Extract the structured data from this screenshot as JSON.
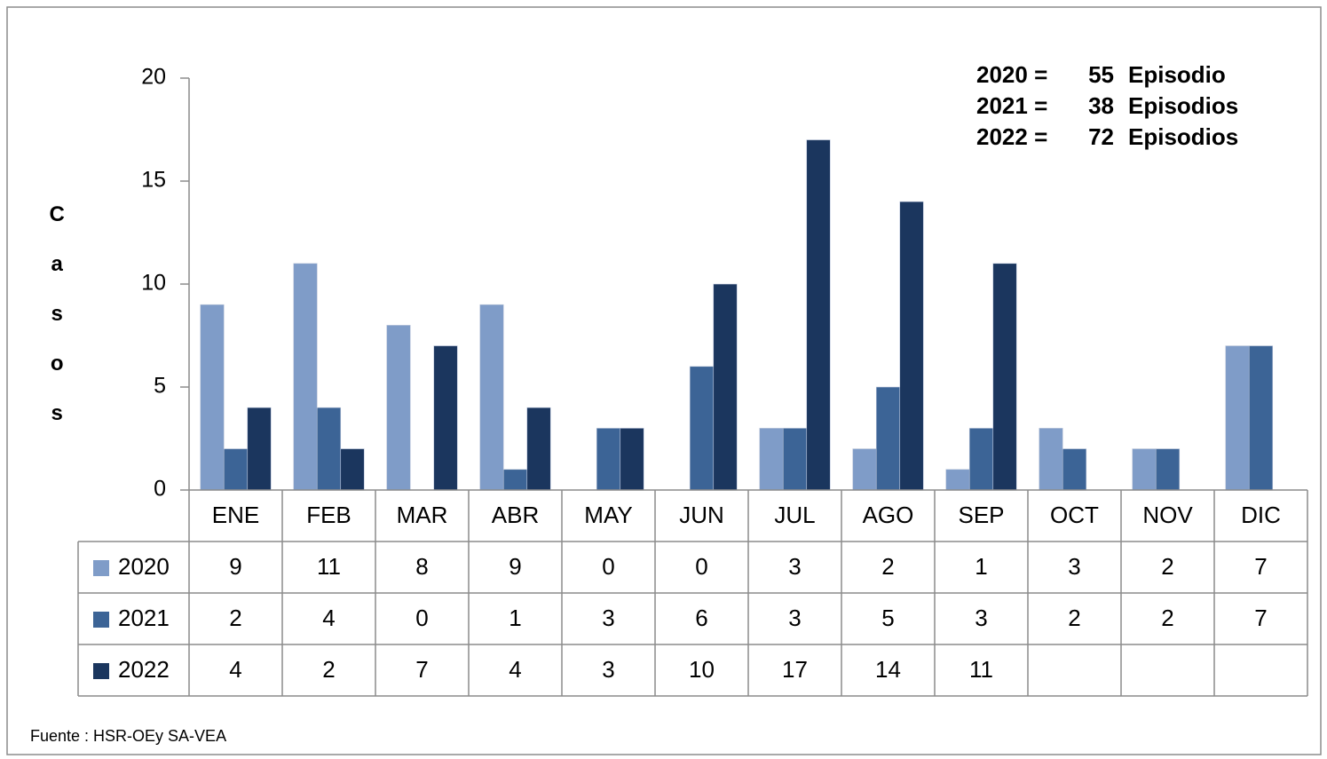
{
  "chart_data": {
    "type": "bar",
    "ylabel": "Casos",
    "categories": [
      "ENE",
      "FEB",
      "MAR",
      "ABR",
      "MAY",
      "JUN",
      "JUL",
      "AGO",
      "SEP",
      "OCT",
      "NOV",
      "DIC"
    ],
    "series": [
      {
        "name": "2020",
        "color": "#7f9cc8",
        "values": [
          9,
          11,
          8,
          9,
          0,
          0,
          3,
          2,
          1,
          3,
          2,
          7
        ]
      },
      {
        "name": "2021",
        "color": "#3c6496",
        "values": [
          2,
          4,
          0,
          1,
          3,
          6,
          3,
          5,
          3,
          2,
          2,
          7
        ]
      },
      {
        "name": "2022",
        "color": "#1b365e",
        "values": [
          4,
          2,
          7,
          4,
          3,
          10,
          17,
          14,
          11,
          null,
          null,
          null
        ]
      }
    ],
    "ylim": [
      0,
      20
    ],
    "yticks": [
      0,
      5,
      10,
      15,
      20
    ],
    "grid": false,
    "annotations": [
      {
        "label": "2020 =",
        "count": 55,
        "unit": "Episodio"
      },
      {
        "label": "2021 =",
        "count": 38,
        "unit": "Episodios"
      },
      {
        "label": "2022 =",
        "count": 72,
        "unit": "Episodios"
      }
    ],
    "source": "Fuente : HSR-OEy SA-VEA"
  }
}
